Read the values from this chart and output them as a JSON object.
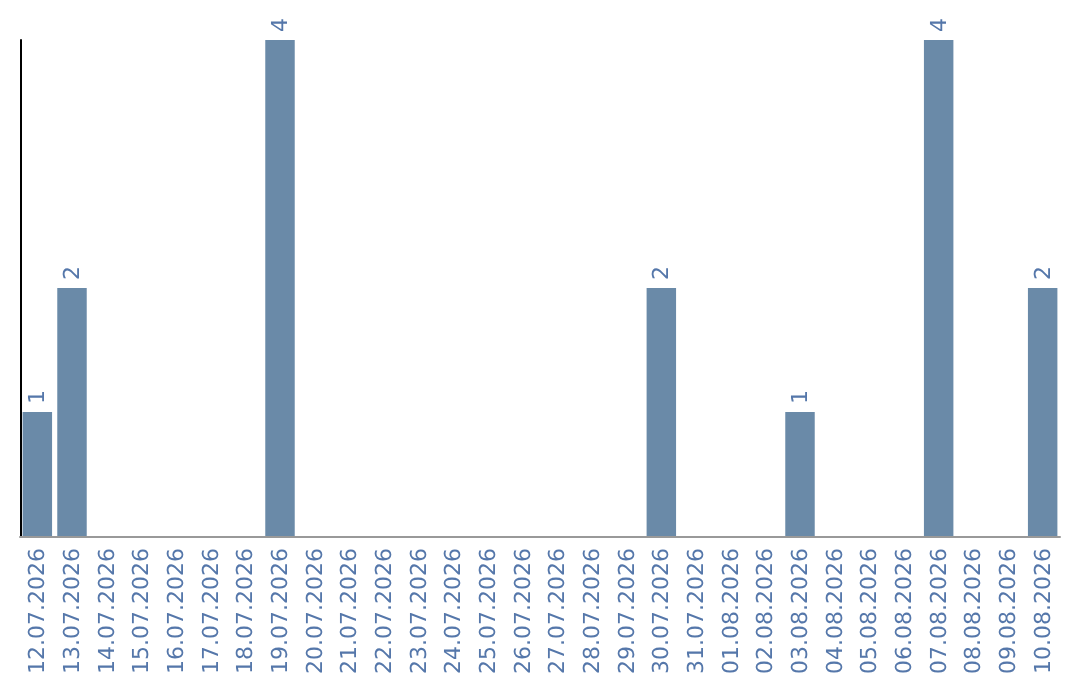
{
  "chart_data": {
    "type": "bar",
    "categories": [
      "12.07.2026",
      "13.07.2026",
      "14.07.2026",
      "15.07.2026",
      "16.07.2026",
      "17.07.2026",
      "18.07.2026",
      "19.07.2026",
      "20.07.2026",
      "21.07.2026",
      "22.07.2026",
      "23.07.2026",
      "24.07.2026",
      "25.07.2026",
      "26.07.2026",
      "27.07.2026",
      "28.07.2026",
      "29.07.2026",
      "30.07.2026",
      "31.07.2026",
      "01.08.2026",
      "02.08.2026",
      "03.08.2026",
      "04.08.2026",
      "05.08.2026",
      "06.08.2026",
      "07.08.2026",
      "08.08.2026",
      "09.08.2026",
      "10.08.2026"
    ],
    "values": [
      1,
      2,
      null,
      null,
      null,
      null,
      null,
      4,
      null,
      null,
      null,
      null,
      null,
      null,
      null,
      null,
      null,
      null,
      2,
      null,
      null,
      null,
      1,
      null,
      null,
      null,
      4,
      null,
      null,
      2
    ],
    "color": "#6a8aa8",
    "data_labels": true
  }
}
